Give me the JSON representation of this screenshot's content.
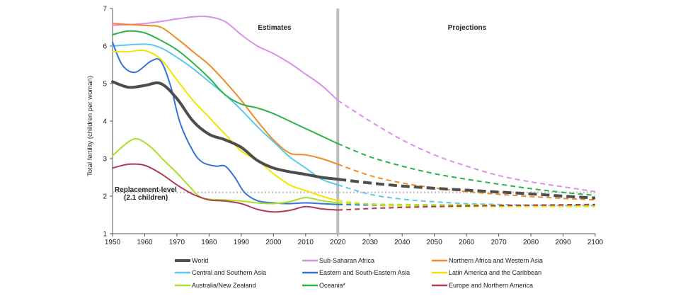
{
  "chart_data": {
    "type": "line",
    "title": "",
    "xlabel": "",
    "ylabel": "Total fertility (children per woman)",
    "xlim": [
      1950,
      2100
    ],
    "ylim": [
      1,
      7
    ],
    "x_ticks": [
      "1950",
      "1960",
      "1970",
      "1980",
      "1990",
      "2000",
      "2010",
      "2020",
      "2030",
      "2040",
      "2050",
      "2060",
      "2070",
      "2080",
      "2090",
      "2100"
    ],
    "y_ticks": [
      "1",
      "2",
      "3",
      "4",
      "5",
      "6",
      "7"
    ],
    "grid": false,
    "divider_year": 2020,
    "period_labels": {
      "estimates": "Estimates",
      "projections": "Projections"
    },
    "annotation": {
      "line1": "Replacement-level",
      "line2": "(2.1 children)",
      "value": 2.1
    },
    "legend_placement": "bottom",
    "series": [
      {
        "name": "World",
        "color": "#4d4d4d",
        "emphasis": true,
        "estimates": [
          [
            1950,
            5.05
          ],
          [
            1955,
            4.9
          ],
          [
            1960,
            4.95
          ],
          [
            1965,
            5.0
          ],
          [
            1970,
            4.6
          ],
          [
            1975,
            4.0
          ],
          [
            1980,
            3.65
          ],
          [
            1985,
            3.5
          ],
          [
            1990,
            3.3
          ],
          [
            1995,
            2.95
          ],
          [
            2000,
            2.75
          ],
          [
            2005,
            2.65
          ],
          [
            2010,
            2.58
          ],
          [
            2015,
            2.5
          ],
          [
            2020,
            2.45
          ]
        ],
        "projections": [
          [
            2020,
            2.45
          ],
          [
            2030,
            2.35
          ],
          [
            2040,
            2.27
          ],
          [
            2050,
            2.21
          ],
          [
            2060,
            2.16
          ],
          [
            2070,
            2.11
          ],
          [
            2080,
            2.06
          ],
          [
            2090,
            2.0
          ],
          [
            2100,
            1.95
          ]
        ]
      },
      {
        "name": "Sub-Saharan Africa",
        "color": "#d990e8",
        "estimates": [
          [
            1950,
            6.55
          ],
          [
            1960,
            6.6
          ],
          [
            1970,
            6.72
          ],
          [
            1975,
            6.78
          ],
          [
            1980,
            6.78
          ],
          [
            1985,
            6.65
          ],
          [
            1990,
            6.3
          ],
          [
            1995,
            6.0
          ],
          [
            2000,
            5.8
          ],
          [
            2005,
            5.55
          ],
          [
            2010,
            5.25
          ],
          [
            2015,
            4.95
          ],
          [
            2020,
            4.55
          ]
        ],
        "projections": [
          [
            2020,
            4.55
          ],
          [
            2030,
            4.0
          ],
          [
            2040,
            3.5
          ],
          [
            2050,
            3.1
          ],
          [
            2060,
            2.8
          ],
          [
            2070,
            2.55
          ],
          [
            2080,
            2.38
          ],
          [
            2090,
            2.25
          ],
          [
            2100,
            2.12
          ]
        ]
      },
      {
        "name": "Northern Africa and Western Asia",
        "color": "#f08a24",
        "estimates": [
          [
            1950,
            6.6
          ],
          [
            1960,
            6.55
          ],
          [
            1965,
            6.5
          ],
          [
            1970,
            6.2
          ],
          [
            1975,
            5.85
          ],
          [
            1980,
            5.5
          ],
          [
            1985,
            5.05
          ],
          [
            1990,
            4.55
          ],
          [
            1995,
            4.0
          ],
          [
            2000,
            3.5
          ],
          [
            2005,
            3.15
          ],
          [
            2010,
            3.1
          ],
          [
            2015,
            3.0
          ],
          [
            2020,
            2.85
          ]
        ],
        "projections": [
          [
            2020,
            2.85
          ],
          [
            2030,
            2.55
          ],
          [
            2040,
            2.35
          ],
          [
            2050,
            2.22
          ],
          [
            2060,
            2.12
          ],
          [
            2070,
            2.05
          ],
          [
            2080,
            1.99
          ],
          [
            2090,
            1.94
          ],
          [
            2100,
            1.9
          ]
        ]
      },
      {
        "name": "Central and Southern Asia",
        "color": "#5ac8f0",
        "estimates": [
          [
            1950,
            6.0
          ],
          [
            1960,
            6.05
          ],
          [
            1965,
            5.95
          ],
          [
            1970,
            5.7
          ],
          [
            1975,
            5.4
          ],
          [
            1980,
            5.05
          ],
          [
            1985,
            4.7
          ],
          [
            1990,
            4.3
          ],
          [
            1995,
            3.85
          ],
          [
            2000,
            3.45
          ],
          [
            2005,
            3.05
          ],
          [
            2010,
            2.75
          ],
          [
            2015,
            2.45
          ],
          [
            2020,
            2.3
          ]
        ],
        "projections": [
          [
            2020,
            2.3
          ],
          [
            2030,
            2.05
          ],
          [
            2040,
            1.92
          ],
          [
            2050,
            1.85
          ],
          [
            2060,
            1.8
          ],
          [
            2070,
            1.78
          ],
          [
            2080,
            1.76
          ],
          [
            2090,
            1.75
          ],
          [
            2100,
            1.75
          ]
        ]
      },
      {
        "name": "Eastern and South-Eastern Asia",
        "color": "#3a72d8",
        "estimates": [
          [
            1950,
            6.1
          ],
          [
            1953,
            5.5
          ],
          [
            1957,
            5.3
          ],
          [
            1962,
            5.6
          ],
          [
            1965,
            5.6
          ],
          [
            1968,
            4.95
          ],
          [
            1971,
            3.95
          ],
          [
            1975,
            3.2
          ],
          [
            1978,
            2.9
          ],
          [
            1982,
            2.8
          ],
          [
            1985,
            2.8
          ],
          [
            1988,
            2.5
          ],
          [
            1991,
            2.1
          ],
          [
            1995,
            1.88
          ],
          [
            2000,
            1.82
          ],
          [
            2005,
            1.8
          ],
          [
            2010,
            1.82
          ],
          [
            2015,
            1.8
          ],
          [
            2020,
            1.78
          ]
        ],
        "projections": [
          [
            2020,
            1.78
          ],
          [
            2030,
            1.76
          ],
          [
            2040,
            1.74
          ],
          [
            2050,
            1.73
          ],
          [
            2060,
            1.73
          ],
          [
            2070,
            1.73
          ],
          [
            2080,
            1.73
          ],
          [
            2090,
            1.73
          ],
          [
            2100,
            1.74
          ]
        ]
      },
      {
        "name": "Latin America and the Caribbean",
        "color": "#f2e600",
        "estimates": [
          [
            1950,
            5.85
          ],
          [
            1955,
            5.85
          ],
          [
            1960,
            5.88
          ],
          [
            1965,
            5.65
          ],
          [
            1970,
            5.1
          ],
          [
            1975,
            4.55
          ],
          [
            1980,
            4.1
          ],
          [
            1985,
            3.65
          ],
          [
            1990,
            3.2
          ],
          [
            1995,
            2.95
          ],
          [
            2000,
            2.6
          ],
          [
            2005,
            2.3
          ],
          [
            2010,
            2.15
          ],
          [
            2015,
            2.0
          ],
          [
            2020,
            1.88
          ]
        ],
        "projections": [
          [
            2020,
            1.88
          ],
          [
            2030,
            1.78
          ],
          [
            2040,
            1.74
          ],
          [
            2050,
            1.72
          ],
          [
            2060,
            1.72
          ],
          [
            2070,
            1.72
          ],
          [
            2080,
            1.72
          ],
          [
            2090,
            1.72
          ],
          [
            2100,
            1.72
          ]
        ]
      },
      {
        "name": "Australia/New Zealand",
        "color": "#a8e02a",
        "estimates": [
          [
            1950,
            3.08
          ],
          [
            1955,
            3.45
          ],
          [
            1958,
            3.52
          ],
          [
            1962,
            3.3
          ],
          [
            1966,
            2.95
          ],
          [
            1970,
            2.62
          ],
          [
            1974,
            2.25
          ],
          [
            1978,
            1.95
          ],
          [
            1985,
            1.9
          ],
          [
            1990,
            1.87
          ],
          [
            1995,
            1.82
          ],
          [
            2000,
            1.8
          ],
          [
            2005,
            1.85
          ],
          [
            2010,
            1.96
          ],
          [
            2015,
            1.88
          ],
          [
            2020,
            1.82
          ]
        ],
        "projections": [
          [
            2020,
            1.82
          ],
          [
            2030,
            1.79
          ],
          [
            2040,
            1.78
          ],
          [
            2050,
            1.77
          ],
          [
            2060,
            1.77
          ],
          [
            2070,
            1.76
          ],
          [
            2080,
            1.76
          ],
          [
            2090,
            1.76
          ],
          [
            2100,
            1.76
          ]
        ]
      },
      {
        "name": "Oceania*",
        "color": "#2cb34a",
        "estimates": [
          [
            1950,
            6.3
          ],
          [
            1955,
            6.4
          ],
          [
            1960,
            6.35
          ],
          [
            1965,
            6.15
          ],
          [
            1970,
            5.9
          ],
          [
            1975,
            5.55
          ],
          [
            1980,
            5.15
          ],
          [
            1985,
            4.7
          ],
          [
            1990,
            4.45
          ],
          [
            1995,
            4.35
          ],
          [
            2000,
            4.2
          ],
          [
            2005,
            4.0
          ],
          [
            2010,
            3.8
          ],
          [
            2015,
            3.6
          ],
          [
            2020,
            3.4
          ]
        ],
        "projections": [
          [
            2020,
            3.4
          ],
          [
            2030,
            3.05
          ],
          [
            2040,
            2.8
          ],
          [
            2050,
            2.6
          ],
          [
            2060,
            2.45
          ],
          [
            2070,
            2.32
          ],
          [
            2080,
            2.2
          ],
          [
            2090,
            2.1
          ],
          [
            2100,
            2.02
          ]
        ]
      },
      {
        "name": "Europe and Northern America",
        "color": "#b03a50",
        "estimates": [
          [
            1950,
            2.75
          ],
          [
            1955,
            2.85
          ],
          [
            1960,
            2.82
          ],
          [
            1965,
            2.6
          ],
          [
            1970,
            2.3
          ],
          [
            1975,
            2.05
          ],
          [
            1980,
            1.9
          ],
          [
            1985,
            1.87
          ],
          [
            1990,
            1.8
          ],
          [
            1995,
            1.65
          ],
          [
            2000,
            1.58
          ],
          [
            2005,
            1.62
          ],
          [
            2010,
            1.72
          ],
          [
            2015,
            1.66
          ],
          [
            2020,
            1.63
          ]
        ],
        "projections": [
          [
            2020,
            1.63
          ],
          [
            2030,
            1.67
          ],
          [
            2040,
            1.7
          ],
          [
            2050,
            1.72
          ],
          [
            2060,
            1.74
          ],
          [
            2070,
            1.75
          ],
          [
            2080,
            1.76
          ],
          [
            2090,
            1.77
          ],
          [
            2100,
            1.78
          ]
        ]
      }
    ]
  }
}
